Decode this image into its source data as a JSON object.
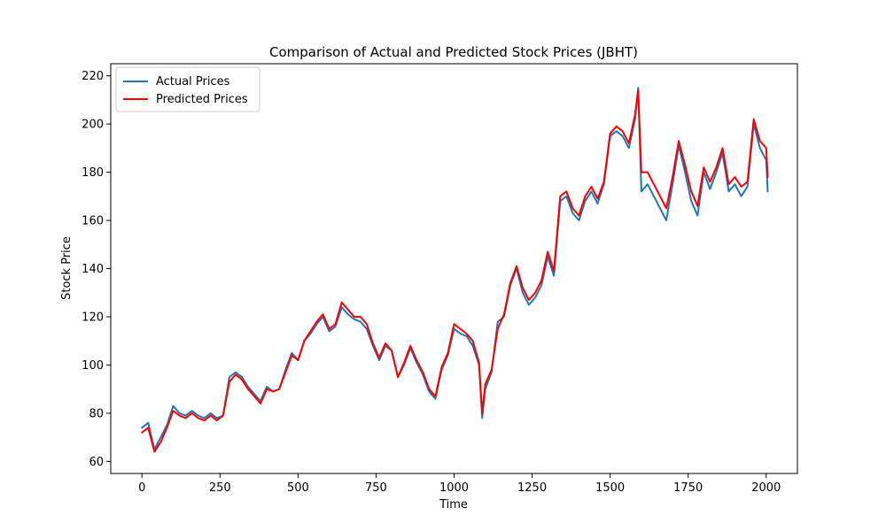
{
  "chart_data": {
    "type": "line",
    "title": "Comparison of Actual and Predicted Stock Prices (JBHT)",
    "xlabel": "Time",
    "ylabel": "Stock Price",
    "xlim": [
      -100,
      2100
    ],
    "ylim": [
      55,
      225
    ],
    "xticks": [
      0,
      250,
      500,
      750,
      1000,
      1250,
      1500,
      1750,
      2000
    ],
    "yticks": [
      60,
      80,
      100,
      120,
      140,
      160,
      180,
      200,
      220
    ],
    "grid": false,
    "legend": "top-left",
    "x": [
      0,
      20,
      40,
      60,
      80,
      100,
      120,
      140,
      160,
      180,
      200,
      220,
      240,
      260,
      280,
      300,
      320,
      340,
      360,
      380,
      400,
      420,
      440,
      460,
      480,
      500,
      520,
      540,
      560,
      580,
      600,
      620,
      640,
      660,
      680,
      700,
      720,
      740,
      760,
      780,
      800,
      820,
      840,
      860,
      880,
      900,
      920,
      940,
      960,
      980,
      1000,
      1020,
      1040,
      1060,
      1080,
      1090,
      1100,
      1120,
      1140,
      1160,
      1180,
      1200,
      1220,
      1240,
      1260,
      1280,
      1300,
      1320,
      1340,
      1360,
      1380,
      1400,
      1420,
      1440,
      1460,
      1480,
      1500,
      1520,
      1540,
      1560,
      1580,
      1590,
      1600,
      1620,
      1640,
      1660,
      1680,
      1700,
      1720,
      1740,
      1760,
      1780,
      1800,
      1820,
      1840,
      1860,
      1880,
      1900,
      1920,
      1940,
      1960,
      1980,
      2000,
      2005
    ],
    "series": [
      {
        "name": "Actual Prices",
        "color": "#1f77b4",
        "values": [
          74,
          76,
          65,
          70,
          75,
          83,
          80,
          79,
          81,
          79,
          78,
          80,
          78,
          79,
          95,
          97,
          95,
          91,
          88,
          85,
          91,
          89,
          90,
          98,
          105,
          102,
          110,
          113,
          117,
          120,
          114,
          116,
          124,
          121,
          119,
          118,
          115,
          108,
          102,
          108,
          106,
          95,
          100,
          107,
          101,
          96,
          89,
          86,
          98,
          104,
          115,
          113,
          112,
          108,
          100,
          78,
          90,
          97,
          118,
          120,
          133,
          140,
          130,
          125,
          128,
          133,
          145,
          137,
          168,
          170,
          163,
          160,
          168,
          172,
          167,
          175,
          195,
          197,
          195,
          190,
          202,
          215,
          172,
          175,
          170,
          165,
          160,
          175,
          191,
          180,
          168,
          162,
          180,
          173,
          180,
          188,
          172,
          175,
          170,
          174,
          200,
          190,
          185,
          172
        ]
      },
      {
        "name": "Predicted Prices",
        "color": "#ff0000",
        "values": [
          72,
          74,
          64,
          68,
          74,
          81,
          79,
          78,
          80,
          78,
          77,
          79,
          77,
          79,
          93,
          96,
          94,
          90,
          87,
          84,
          90,
          89,
          90,
          97,
          104,
          102,
          110,
          114,
          118,
          121,
          115,
          117,
          126,
          123,
          120,
          120,
          117,
          109,
          103,
          109,
          106,
          95,
          101,
          108,
          102,
          97,
          90,
          87,
          99,
          105,
          117,
          115,
          113,
          110,
          101,
          80,
          92,
          98,
          115,
          121,
          134,
          141,
          132,
          127,
          130,
          135,
          147,
          139,
          170,
          172,
          165,
          162,
          170,
          174,
          169,
          176,
          196,
          199,
          197,
          192,
          204,
          214,
          180,
          180,
          175,
          170,
          165,
          178,
          193,
          183,
          172,
          166,
          182,
          176,
          182,
          190,
          175,
          178,
          174,
          176,
          202,
          193,
          190,
          178
        ]
      }
    ]
  }
}
